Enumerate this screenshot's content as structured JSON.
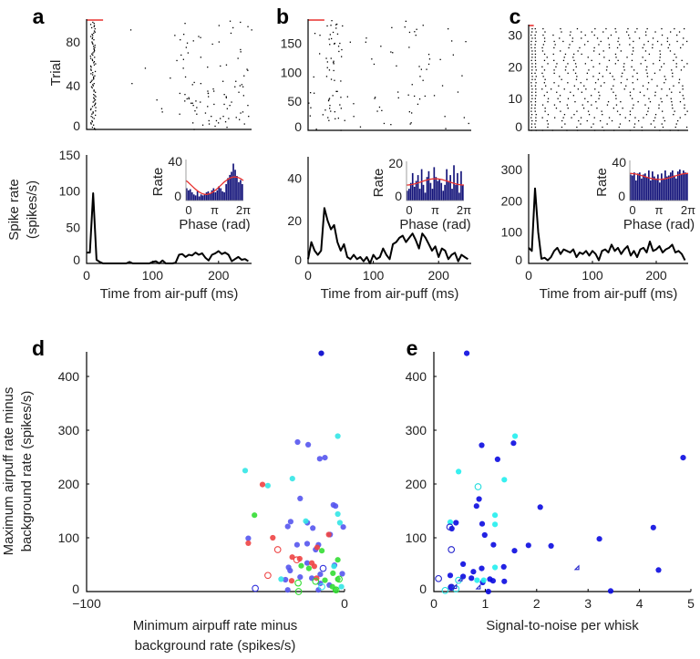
{
  "chart_data": [
    {
      "panel": "a",
      "type": "scatter",
      "subtype": "raster",
      "ylabel": "Trial",
      "n_trials": 100,
      "xlim": [
        0,
        250
      ],
      "ylim": [
        0,
        100
      ],
      "yticks": [
        "0",
        "40",
        "80"
      ],
      "stimulus_bar_ms": [
        0,
        25
      ],
      "stimulus_color": "#e8312f"
    },
    {
      "panel": "a",
      "type": "line",
      "ylabel": [
        "Spike rate",
        "(spikes/s)"
      ],
      "xlabel": "Time from air-puff (ms)",
      "xlim": [
        0,
        250
      ],
      "ylim": [
        0,
        150
      ],
      "xticks": [
        "0",
        "100",
        "200"
      ],
      "yticks": [
        "0",
        "50",
        "100",
        "150"
      ],
      "bin_ms": 5,
      "values": [
        15,
        15,
        97,
        5,
        2,
        0,
        0,
        0,
        0,
        0,
        0,
        0,
        0,
        2,
        0,
        0,
        0,
        0,
        0,
        0,
        2,
        3,
        0,
        4,
        0,
        0,
        0,
        1,
        12,
        13,
        9,
        12,
        11,
        15,
        12,
        14,
        8,
        4,
        12,
        14,
        17,
        13,
        15,
        12,
        3,
        6,
        9,
        5,
        6,
        3
      ],
      "inset": {
        "type": "bar",
        "ylabel": "Rate",
        "xlabel": "Phase (rad)",
        "xticks": [
          "0",
          "π",
          "2π"
        ],
        "yticks": [
          "0",
          "40"
        ],
        "ylim": [
          0,
          40
        ],
        "values": [
          12,
          10,
          11,
          8,
          6,
          5,
          9,
          4,
          6,
          5,
          6,
          8,
          9,
          7,
          10,
          12,
          8,
          10,
          14,
          12,
          9,
          8,
          16,
          22,
          25,
          28,
          36,
          30,
          24,
          18,
          20,
          16
        ],
        "fit": {
          "mean": 14.5,
          "amplitude": 8.5,
          "preferred_phase_pi": 1.7
        }
      }
    },
    {
      "panel": "b",
      "type": "scatter",
      "subtype": "raster",
      "n_trials": 190,
      "xlim": [
        0,
        250
      ],
      "ylim": [
        0,
        190
      ],
      "yticks": [
        "0",
        "50",
        "100",
        "150"
      ],
      "stimulus_bar_ms": [
        0,
        25
      ],
      "stimulus_color": "#e8312f"
    },
    {
      "panel": "b",
      "type": "line",
      "xlabel": "Time from air-puff (ms)",
      "xlim": [
        0,
        250
      ],
      "ylim": [
        0,
        50
      ],
      "xticks": [
        "0",
        "100",
        "200"
      ],
      "yticks": [
        "0",
        "20",
        "40"
      ],
      "bin_ms": 5,
      "values": [
        2,
        10,
        6,
        4,
        6,
        26,
        20,
        16,
        18,
        10,
        6,
        9,
        3,
        2,
        4,
        2,
        3,
        1,
        3,
        0,
        4,
        2,
        3,
        7,
        4,
        2,
        9,
        10,
        12,
        13,
        10,
        12,
        14,
        11,
        7,
        14,
        12,
        9,
        6,
        8,
        3,
        7,
        6,
        2,
        4,
        5,
        1,
        4,
        3,
        2
      ],
      "inset": {
        "type": "bar",
        "ylabel": "Rate",
        "xlabel": "Phase (rad)",
        "xticks": [
          "0",
          "π",
          "2π"
        ],
        "yticks": [
          "0",
          "20"
        ],
        "ylim": [
          0,
          20
        ],
        "values": [
          5,
          6,
          9,
          14,
          7,
          10,
          13,
          6,
          16,
          8,
          4,
          12,
          15,
          9,
          6,
          17,
          12,
          10,
          11,
          9,
          5,
          8,
          16,
          10,
          13,
          6,
          18,
          8,
          14,
          4,
          15,
          8
        ],
        "fit": {
          "mean": 9.5,
          "amplitude": 1.6,
          "preferred_phase_pi": 1.0
        }
      }
    },
    {
      "panel": "c",
      "type": "scatter",
      "subtype": "raster",
      "n_trials": 33,
      "xlim": [
        0,
        250
      ],
      "ylim": [
        0,
        33
      ],
      "yticks": [
        "0",
        "10",
        "20",
        "30"
      ],
      "stimulus_bar_ms": [
        0,
        8
      ],
      "stimulus_color": "#e8312f"
    },
    {
      "panel": "c",
      "type": "line",
      "xlabel": "Time from air-puff (ms)",
      "xlim": [
        0,
        250
      ],
      "ylim": [
        0,
        350
      ],
      "xticks": [
        "0",
        "100",
        "200"
      ],
      "yticks": [
        "0",
        "100",
        "200",
        "300"
      ],
      "bin_ms": 5,
      "values": [
        50,
        40,
        240,
        100,
        15,
        18,
        10,
        20,
        40,
        50,
        30,
        45,
        40,
        35,
        45,
        20,
        35,
        30,
        40,
        25,
        40,
        30,
        10,
        40,
        45,
        35,
        60,
        40,
        50,
        30,
        45,
        55,
        25,
        40,
        20,
        45,
        50,
        35,
        70,
        40,
        45,
        55,
        35,
        45,
        50,
        60,
        35,
        40,
        30,
        10
      ],
      "inset": {
        "type": "bar",
        "ylabel": "Rate",
        "xlabel": "Phase (rad)",
        "xticks": [
          "0",
          "π",
          "2π"
        ],
        "yticks": [
          "0",
          "40"
        ],
        "ylim": [
          0,
          40
        ],
        "values": [
          26,
          25,
          28,
          20,
          27,
          28,
          22,
          26,
          27,
          23,
          30,
          20,
          29,
          24,
          22,
          26,
          18,
          27,
          22,
          30,
          24,
          25,
          28,
          30,
          25,
          22,
          29,
          31,
          26,
          30,
          28,
          27
        ],
        "fit": {
          "mean": 24,
          "amplitude": 3,
          "preferred_phase_pi": 0
        }
      }
    },
    {
      "panel": "d",
      "type": "scatter",
      "xlabel": [
        "Minimum airpuff rate minus",
        "background rate (spikes/s)"
      ],
      "ylabel": [
        "Maximum airpuff rate minus",
        "background rate (spikes/s)"
      ],
      "xlim": [
        -100,
        0
      ],
      "ylim": [
        0,
        450
      ],
      "xticks": [
        "−100",
        "0"
      ],
      "yticks": [
        "0",
        "100",
        "200",
        "300",
        "400"
      ],
      "series": [
        {
          "name": "dark blue filled",
          "color": "#0000cc",
          "marker": "filled-circle",
          "points": [
            [
              -9,
              443
            ]
          ]
        },
        {
          "name": "blue filled",
          "color": "#5555ee",
          "marker": "filled-circle",
          "points": [
            [
              -18.2,
              278
            ],
            [
              -14.1,
              273
            ],
            [
              -9.6,
              247
            ],
            [
              -7.6,
              249
            ],
            [
              -17.2,
              173
            ],
            [
              -4.3,
              161
            ],
            [
              -3.5,
              159
            ],
            [
              -20.9,
              130
            ],
            [
              -22,
              121
            ],
            [
              -14.4,
              128
            ],
            [
              -12.3,
              118
            ],
            [
              -0.5,
              120
            ],
            [
              -37.3,
              99
            ],
            [
              -18.4,
              87
            ],
            [
              -14.5,
              89
            ],
            [
              -10.1,
              87
            ],
            [
              -11.2,
              78
            ],
            [
              -5.6,
              106
            ],
            [
              -21.7,
              45
            ],
            [
              -21.1,
              39
            ],
            [
              -14.5,
              53
            ],
            [
              -17.2,
              27
            ],
            [
              -9.4,
              32
            ],
            [
              -3.9,
              49
            ],
            [
              -0.9,
              33
            ],
            [
              -12.7,
              25
            ],
            [
              -9.4,
              15
            ],
            [
              -22.9,
              22
            ],
            [
              -22,
              3
            ],
            [
              -10.1,
              3
            ],
            [
              -5.9,
              12
            ]
          ]
        },
        {
          "name": "cyan filled",
          "color": "#33e6e6",
          "marker": "filled-circle",
          "points": [
            [
              -38.5,
              225
            ],
            [
              -29.7,
              197
            ],
            [
              -20.2,
              210
            ],
            [
              -2.6,
              289
            ],
            [
              -2.6,
              144
            ],
            [
              -1.8,
              128
            ],
            [
              -15,
              131
            ],
            [
              -24.6,
              23
            ],
            [
              -4.1,
              47
            ],
            [
              -1.2,
              9
            ]
          ]
        },
        {
          "name": "red filled",
          "color": "#ee4444",
          "marker": "filled-circle",
          "points": [
            [
              -31.8,
              199
            ],
            [
              -27.8,
              100
            ],
            [
              -37.3,
              90
            ],
            [
              -20.3,
              64
            ],
            [
              -17.4,
              61
            ],
            [
              -12.7,
              53
            ],
            [
              -11.7,
              47
            ],
            [
              -10.6,
              82
            ],
            [
              -6.1,
              106
            ],
            [
              -20.5,
              20
            ],
            [
              -10.8,
              25
            ]
          ]
        },
        {
          "name": "red open",
          "color": "#ee4444",
          "marker": "open-circle",
          "points": [
            [
              -25.9,
              78
            ],
            [
              -29.7,
              30
            ],
            [
              -18.5,
              59
            ]
          ]
        },
        {
          "name": "green filled",
          "color": "#33dd33",
          "marker": "filled-circle",
          "points": [
            [
              -34.9,
              142
            ],
            [
              -8.8,
              76
            ],
            [
              -2.6,
              59
            ],
            [
              -16.8,
              48
            ],
            [
              -13.8,
              43
            ],
            [
              -4.5,
              34
            ],
            [
              -7.6,
              21
            ],
            [
              -2.6,
              23
            ],
            [
              -4.7,
              9
            ],
            [
              -3.5,
              3
            ]
          ]
        },
        {
          "name": "green open",
          "color": "#33dd33",
          "marker": "open-circle",
          "points": [
            [
              -18,
              16
            ],
            [
              -17.8,
              0
            ],
            [
              -11.2,
              19
            ],
            [
              -3.3,
              3
            ],
            [
              -2.1,
              23
            ]
          ]
        },
        {
          "name": "blue open",
          "color": "#3333dd",
          "marker": "open-circle",
          "points": [
            [
              -34.6,
              6
            ],
            [
              -8.3,
              43
            ]
          ]
        },
        {
          "name": "cyan open",
          "color": "#33e6e6",
          "marker": "open-circle",
          "points": [
            [
              -8.8,
              9
            ]
          ]
        }
      ]
    },
    {
      "panel": "e",
      "type": "scatter",
      "xlabel": "Signal-to-noise per whisk",
      "xlim": [
        0,
        5
      ],
      "ylim": [
        0,
        450
      ],
      "xticks": [
        "0",
        "1",
        "2",
        "3",
        "4",
        "5"
      ],
      "yticks": [
        "0",
        "100",
        "200",
        "300",
        "400"
      ],
      "series": [
        {
          "name": "blue filled",
          "color": "#0a0ae0",
          "marker": "filled-circle",
          "points": [
            [
              0.64,
              443
            ],
            [
              0.93,
              272
            ],
            [
              1.55,
              276
            ],
            [
              1.24,
              246
            ],
            [
              4.85,
              249
            ],
            [
              0.88,
              172
            ],
            [
              0.83,
              159
            ],
            [
              2.07,
              157
            ],
            [
              0.43,
              128
            ],
            [
              0.94,
              126
            ],
            [
              0.35,
              117
            ],
            [
              4.27,
              119
            ],
            [
              0.99,
              105
            ],
            [
              3.22,
              98
            ],
            [
              1.16,
              87
            ],
            [
              1.84,
              86
            ],
            [
              2.28,
              85
            ],
            [
              1.57,
              76
            ],
            [
              0.57,
              51
            ],
            [
              0.77,
              37
            ],
            [
              0.93,
              43
            ],
            [
              1.36,
              46
            ],
            [
              4.37,
              40
            ],
            [
              0.32,
              30
            ],
            [
              0.57,
              28
            ],
            [
              0.73,
              25
            ],
            [
              0.95,
              17
            ],
            [
              1.09,
              23
            ],
            [
              1.15,
              20
            ],
            [
              1.37,
              19
            ],
            [
              1.06,
              0
            ],
            [
              3.44,
              1
            ],
            [
              0.34,
              8
            ]
          ]
        },
        {
          "name": "cyan filled",
          "color": "#22eeee",
          "marker": "filled-circle",
          "points": [
            [
              1.58,
              289
            ],
            [
              0.48,
              223
            ],
            [
              1.37,
              208
            ],
            [
              1.19,
              142
            ],
            [
              1.19,
              125
            ],
            [
              0.32,
              129
            ],
            [
              1.19,
              45
            ],
            [
              0.84,
              21
            ],
            [
              0.97,
              21
            ]
          ]
        },
        {
          "name": "cyan open",
          "color": "#22dddd",
          "marker": "open-circle",
          "points": [
            [
              0.86,
              195
            ],
            [
              0.48,
              21
            ],
            [
              0.22,
              2
            ],
            [
              0.43,
              5
            ]
          ]
        },
        {
          "name": "blue open",
          "color": "#2222cc",
          "marker": "open-circle",
          "points": [
            [
              0.31,
              120
            ],
            [
              0.34,
              78
            ],
            [
              0.09,
              24
            ],
            [
              0.34,
              8
            ]
          ]
        },
        {
          "name": "blue open triangle",
          "color": "#2222cc",
          "marker": "open-triangle",
          "points": [
            [
              0.55,
              20
            ],
            [
              0.9,
              5
            ],
            [
              2.82,
              41
            ],
            [
              0.44,
              6
            ]
          ]
        }
      ]
    }
  ],
  "panel_labels": [
    "a",
    "b",
    "c",
    "d",
    "e"
  ]
}
